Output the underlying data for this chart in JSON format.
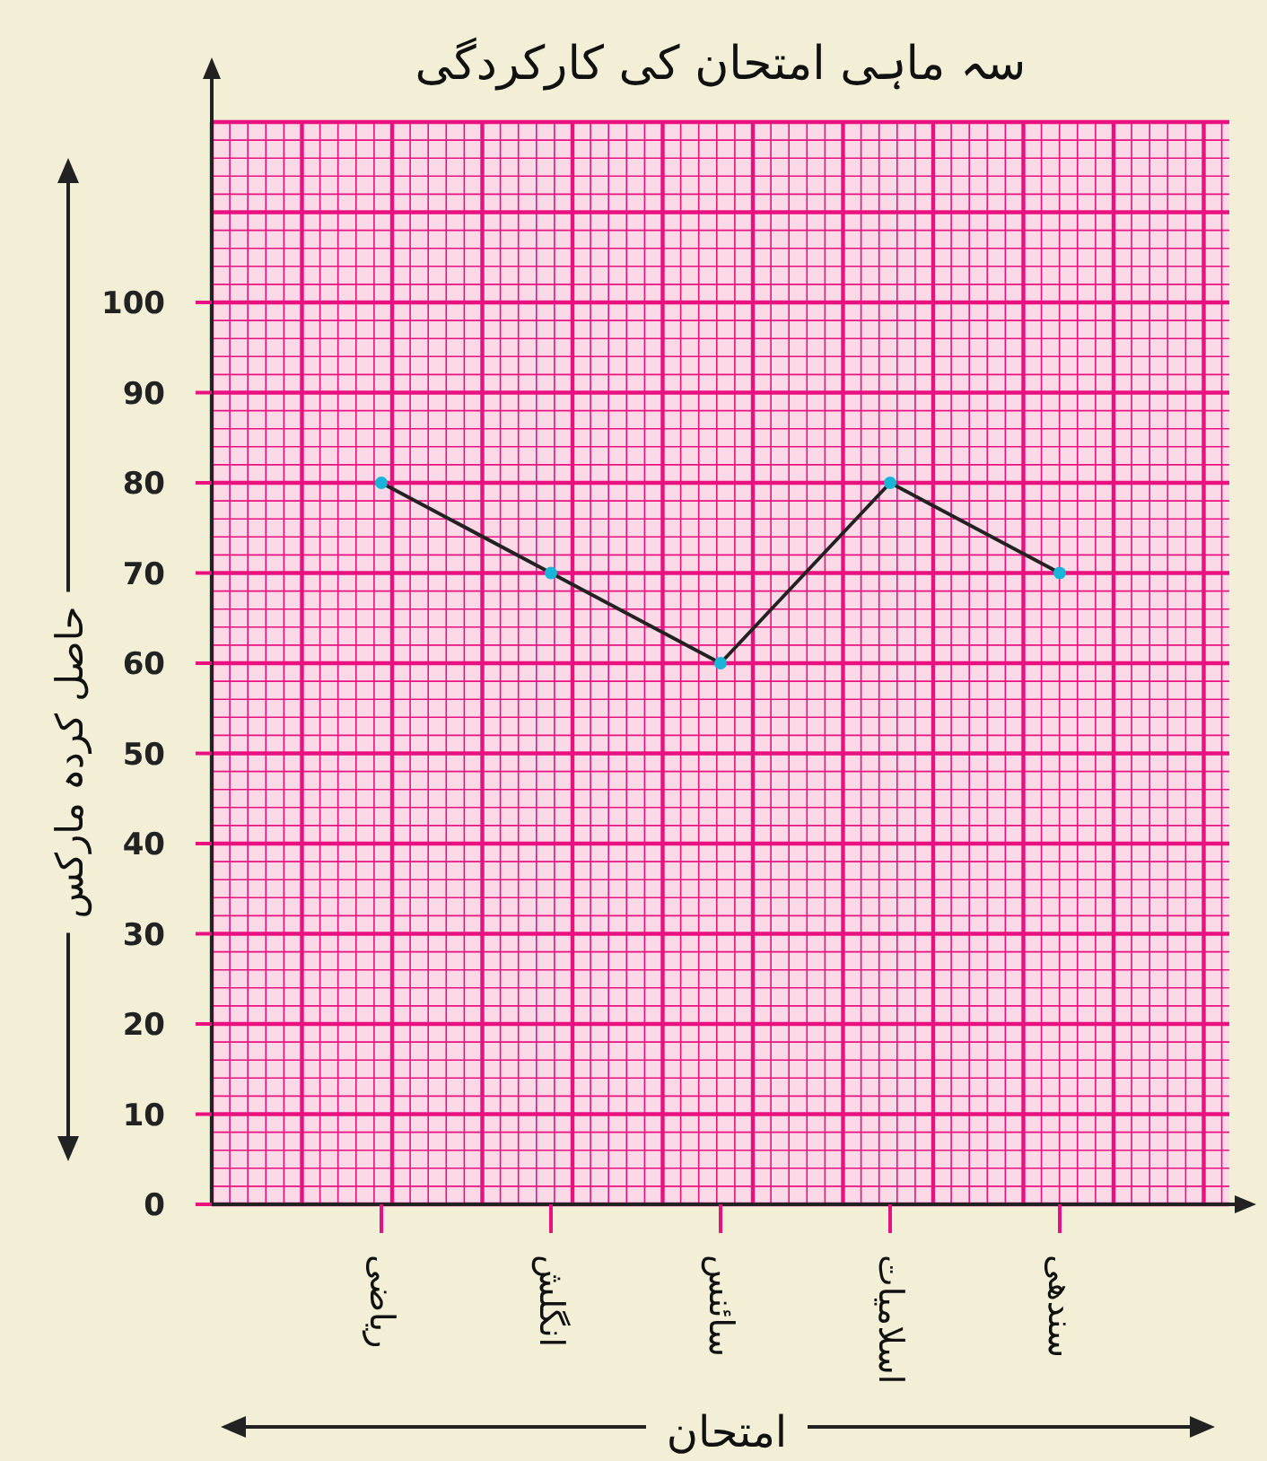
{
  "chart_data": {
    "type": "line",
    "title": "سہ ماہی امتحان کی کارکردگی",
    "xlabel": "امتحان",
    "ylabel": "حاصل کردہ مارکس",
    "categories": [
      "ریاضی",
      "انگلش",
      "سائنس",
      "اسلامیات",
      "سندھی"
    ],
    "series": [
      {
        "color": "#222222",
        "colors": [
          "#19b5d8",
          "#19b5d8",
          "#19b5d8",
          "#19b5d8",
          "#19b5d8"
        ],
        "values": [
          80,
          70,
          60,
          80,
          70
        ]
      }
    ],
    "ylim": [
      0,
      120
    ],
    "yticks": [
      0,
      10,
      20,
      30,
      40,
      50,
      60,
      70,
      80,
      90,
      100
    ],
    "grid": true,
    "marker": "circle",
    "line_style": "solid"
  }
}
